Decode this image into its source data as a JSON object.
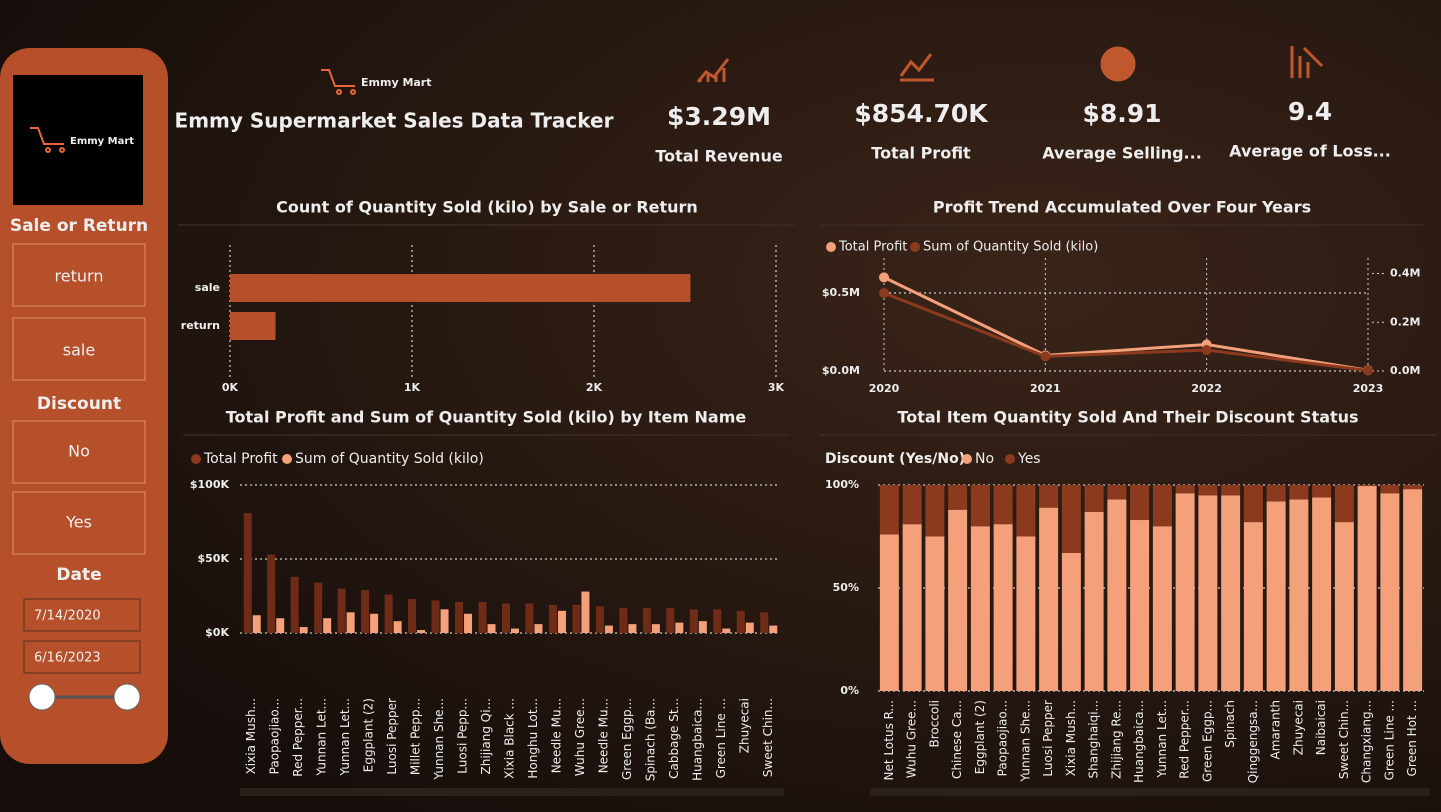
{
  "header": {
    "logo_text": "Emmy Mart",
    "title": "Emmy Supermarket Sales Data Tracker"
  },
  "kpis": [
    {
      "value": "$3.29M",
      "label": "Total Revenue"
    },
    {
      "value": "$854.70K",
      "label": "Total Profit"
    },
    {
      "value": "$8.91",
      "label": "Average Selling..."
    },
    {
      "value": "9.4",
      "label": "Average of Loss..."
    }
  ],
  "filters": {
    "sale_or_return": {
      "title": "Sale or Return",
      "options": [
        "return",
        "sale"
      ]
    },
    "discount": {
      "title": "Discount",
      "options": [
        "No",
        "Yes"
      ]
    },
    "date": {
      "title": "Date",
      "start": "7/14/2020",
      "end": "6/16/2023"
    }
  },
  "chart_data": [
    {
      "type": "bar",
      "orientation": "horizontal",
      "title": "Count of Quantity Sold (kilo) by Sale or Return",
      "categories": [
        "sale",
        "return"
      ],
      "values": [
        2530,
        250
      ],
      "color": "#b5502a",
      "xlim": [
        0,
        3000
      ],
      "xticks": [
        {
          "value": 0,
          "label": "0K"
        },
        {
          "value": 1000,
          "label": "1K"
        },
        {
          "value": 2000,
          "label": "2K"
        },
        {
          "value": 3000,
          "label": "3K"
        }
      ],
      "grid": true
    },
    {
      "type": "line",
      "title": "Profit Trend Accumulated Over Four Years",
      "categories": [
        "2020",
        "2021",
        "2022",
        "2023"
      ],
      "series": [
        {
          "name": "Total Profit",
          "color": "#f4a07a",
          "values": [
            600000,
            100000,
            170000,
            5000
          ]
        },
        {
          "name": "Sum of Quantity Sold (kilo)",
          "color": "#8b3a1e",
          "axis": "y2",
          "values": [
            320000,
            60000,
            86000,
            2000
          ]
        }
      ],
      "ylim": [
        0,
        750000
      ],
      "yticks": [
        {
          "value": 0,
          "label": "$0.0M"
        },
        {
          "value": 500000,
          "label": "$0.5M"
        }
      ],
      "y2lim": [
        0,
        480000
      ],
      "y2ticks": [
        {
          "value": 0,
          "label": "0.0M"
        },
        {
          "value": 200000,
          "label": "0.2M"
        },
        {
          "value": 400000,
          "label": "0.4M"
        }
      ],
      "grid": true
    },
    {
      "type": "grouped_bar",
      "title": "Total Profit and Sum of Quantity Sold (kilo) by Item Name",
      "categories": [
        "Xixia Mush...",
        "Paopaojiao...",
        "Red Pepper...",
        "Yunnan Let...",
        "Yunnan Let...",
        "Eggplant (2)",
        "Luosi Pepper",
        "Millet Pepp...",
        "Yunnan She...",
        "Luosi Pepp...",
        "Zhijiang Qi...",
        "Xixia Black ...",
        "Honghu Lot...",
        "Needle Mu...",
        "Wuhu Gree...",
        "Needle Mu...",
        "Green Eggp...",
        "Spinach (Ba...",
        "Cabbage St...",
        "Huangbaica...",
        "Green Line ...",
        "Zhuyecai",
        "Sweet Chin..."
      ],
      "series": [
        {
          "name": "Total Profit",
          "color": "#6e2c17",
          "values": [
            81000,
            53000,
            38000,
            34000,
            30000,
            29000,
            26000,
            23000,
            22000,
            21000,
            21000,
            20000,
            20000,
            19000,
            19000,
            18000,
            17000,
            17000,
            17000,
            16000,
            16000,
            15000,
            14000
          ]
        },
        {
          "name": "Sum of Quantity Sold (kilo)",
          "color": "#f4a07a",
          "values": [
            12000,
            10000,
            4000,
            10000,
            14000,
            13000,
            8000,
            2000,
            16000,
            13000,
            6000,
            3000,
            6000,
            15000,
            28000,
            5000,
            6000,
            6000,
            7000,
            8000,
            3000,
            7000,
            5000
          ]
        }
      ],
      "ylim": [
        0,
        100000
      ],
      "yticks": [
        {
          "value": 0,
          "label": "$0K"
        },
        {
          "value": 50000,
          "label": "$50K"
        },
        {
          "value": 100000,
          "label": "$100K"
        }
      ],
      "grid": true
    },
    {
      "type": "stacked_bar",
      "title": "Total Item Quantity Sold And Their Discount Status",
      "legend_title": "Discount (Yes/No)",
      "categories": [
        "Net Lotus R...",
        "Wuhu Gree...",
        "Broccoli",
        "Chinese Ca...",
        "Eggplant (2)",
        "Paopaojiao...",
        "Yunnan She...",
        "Luosi Pepper",
        "Xixia Mush...",
        "Shanghaiqi...",
        "Zhijiang Re...",
        "Huangbaica...",
        "Yunnan Let...",
        "Red Pepper...",
        "Green Eggp...",
        "Spinach",
        "Qinggengsa...",
        "Amaranth",
        "Zhuyecai",
        "Naibaicai",
        "Sweet Chin...",
        "Changxiang...",
        "Green Line ...",
        "Green Hot ..."
      ],
      "series": [
        {
          "name": "No",
          "color": "#f4a07a",
          "values": [
            76,
            81,
            75,
            88,
            80,
            81,
            75,
            89,
            67,
            87,
            93,
            83,
            80,
            96,
            95,
            95,
            82,
            92,
            93,
            94,
            82,
            99.5,
            96,
            98
          ]
        },
        {
          "name": "Yes",
          "color": "#8b3a1e",
          "values": [
            24,
            19,
            25,
            12,
            20,
            19,
            25,
            11,
            33,
            13,
            7,
            17,
            20,
            4,
            5,
            5,
            18,
            8,
            7,
            6,
            18,
            0.5,
            4,
            2
          ]
        }
      ],
      "ylim": [
        0,
        100
      ],
      "yticks": [
        {
          "value": 0,
          "label": "0%"
        },
        {
          "value": 50,
          "label": "50%"
        },
        {
          "value": 100,
          "label": "100%"
        }
      ],
      "grid": true
    }
  ]
}
